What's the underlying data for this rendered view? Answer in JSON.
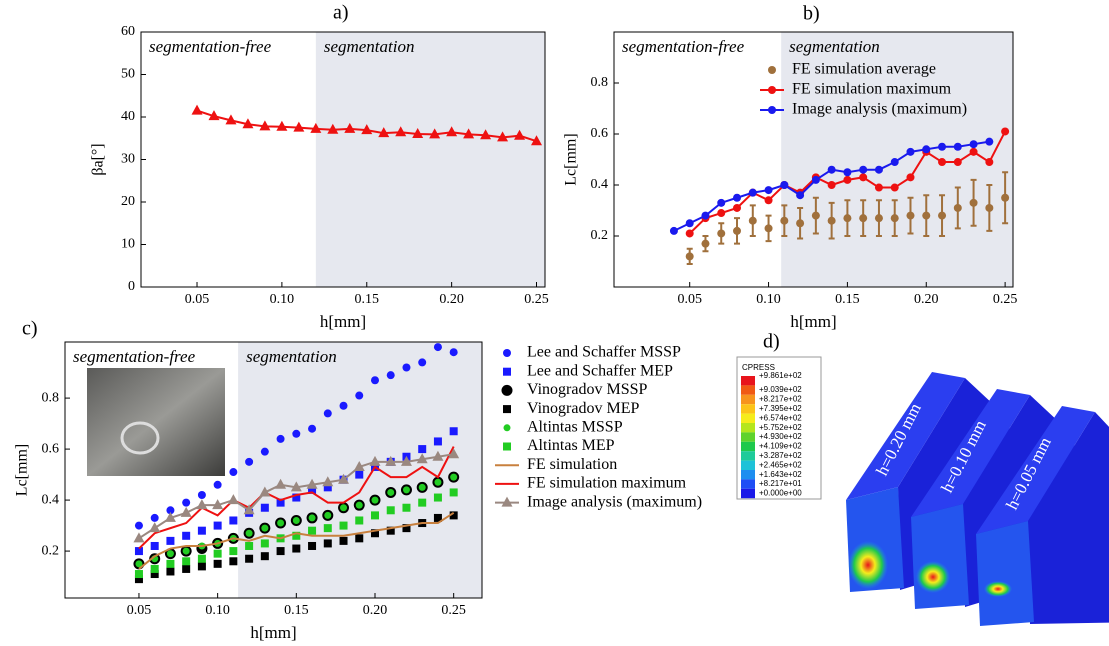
{
  "chart_data": [
    {
      "type": "line",
      "panel_label": "a)",
      "annotations": [
        "segmentation-free",
        "segmentation"
      ],
      "x_label": "h[mm]",
      "y_label": "βa[°]",
      "xlim": [
        0.017,
        0.255
      ],
      "ylim": [
        0,
        60
      ],
      "xticks": [
        0.05,
        {
          "value": 0.1,
          "label": "0.10"
        },
        0.15,
        {
          "value": 0.2,
          "label": "0.20"
        },
        0.25
      ],
      "yticks": [
        0,
        10,
        20,
        30,
        40,
        50,
        60
      ],
      "shaded_from": 0.12,
      "shade_color": "#e6e8ef",
      "x": [
        0.05,
        0.06,
        0.07,
        0.08,
        0.09,
        0.1,
        0.11,
        0.12,
        0.13,
        0.14,
        0.15,
        0.16,
        0.17,
        0.18,
        0.19,
        0.2,
        0.21,
        0.22,
        0.23,
        0.24,
        0.25
      ],
      "series": [
        {
          "color": "#ee1111",
          "marker": "triangle",
          "line": true,
          "marker_size": 5,
          "values": [
            41.5,
            40.2,
            39.2,
            38.3,
            37.8,
            37.7,
            37.5,
            37.2,
            37.0,
            37.2,
            36.9,
            36.2,
            36.4,
            36.0,
            35.9,
            36.4,
            35.9,
            35.7,
            35.2,
            35.6,
            34.3
          ]
        }
      ]
    },
    {
      "type": "line",
      "panel_label": "b)",
      "annotations": [
        "segmentation-free",
        "segmentation"
      ],
      "x_label": "h[mm]",
      "y_label": "Lc[mm]",
      "xlim": [
        0.002,
        0.255
      ],
      "ylim": [
        0,
        1.0
      ],
      "xticks": [
        0.05,
        {
          "value": 0.1,
          "label": "0.10"
        },
        0.15,
        {
          "value": 0.2,
          "label": "0.20"
        },
        0.25
      ],
      "yticks": [
        0.2,
        0.4,
        0.6,
        0.8
      ],
      "shaded_from": 0.108,
      "shade_color": "#e6e8ef",
      "legend": "upper right",
      "series": [
        {
          "name": "FE simulation average",
          "color": "#a0703c",
          "marker": "circle",
          "line": false,
          "marker_size": 4,
          "x": [
            0.05,
            0.06,
            0.07,
            0.08,
            0.09,
            0.1,
            0.11,
            0.12,
            0.13,
            0.14,
            0.15,
            0.16,
            0.17,
            0.18,
            0.19,
            0.2,
            0.21,
            0.22,
            0.23,
            0.24,
            0.25
          ],
          "values": [
            0.12,
            0.17,
            0.21,
            0.22,
            0.26,
            0.23,
            0.26,
            0.25,
            0.28,
            0.26,
            0.27,
            0.27,
            0.27,
            0.27,
            0.28,
            0.28,
            0.28,
            0.31,
            0.33,
            0.31,
            0.35
          ],
          "errors": [
            0.03,
            0.03,
            0.04,
            0.05,
            0.06,
            0.05,
            0.06,
            0.06,
            0.07,
            0.07,
            0.07,
            0.07,
            0.07,
            0.07,
            0.07,
            0.08,
            0.08,
            0.08,
            0.09,
            0.09,
            0.1
          ]
        },
        {
          "name": "FE simulation maximum",
          "color": "#ee1111",
          "marker": "circle",
          "line": true,
          "marker_size": 4,
          "x": [
            0.05,
            0.06,
            0.07,
            0.08,
            0.09,
            0.1,
            0.11,
            0.12,
            0.13,
            0.14,
            0.15,
            0.16,
            0.17,
            0.18,
            0.19,
            0.2,
            0.21,
            0.22,
            0.23,
            0.24,
            0.25
          ],
          "values": [
            0.21,
            0.27,
            0.29,
            0.31,
            0.37,
            0.34,
            0.4,
            0.37,
            0.43,
            0.4,
            0.42,
            0.43,
            0.39,
            0.39,
            0.43,
            0.53,
            0.49,
            0.49,
            0.53,
            0.49,
            0.61
          ]
        },
        {
          "name": "Image analysis (maximum)",
          "color": "#1a1aee",
          "marker": "circle",
          "line": true,
          "marker_size": 4,
          "x": [
            0.04,
            0.05,
            0.06,
            0.07,
            0.08,
            0.09,
            0.1,
            0.11,
            0.12,
            0.13,
            0.14,
            0.15,
            0.16,
            0.17,
            0.18,
            0.19,
            0.2,
            0.21,
            0.22,
            0.23,
            0.24
          ],
          "values": [
            0.22,
            0.25,
            0.28,
            0.33,
            0.35,
            0.37,
            0.38,
            0.4,
            0.36,
            0.42,
            0.46,
            0.45,
            0.46,
            0.46,
            0.49,
            0.53,
            0.54,
            0.55,
            0.55,
            0.56,
            0.57
          ]
        }
      ]
    },
    {
      "type": "line",
      "panel_label": "c)",
      "annotations": [
        "segmentation-free",
        "segmentation"
      ],
      "x_label": "h[mm]",
      "y_label": "Lc[mm]",
      "xlim": [
        0.003,
        0.268
      ],
      "ylim": [
        0.016,
        1.02
      ],
      "xticks": [
        0.05,
        {
          "value": 0.1,
          "label": "0.10"
        },
        0.15,
        {
          "value": 0.2,
          "label": "0.20"
        },
        0.25
      ],
      "yticks": [
        0.2,
        0.4,
        0.6,
        0.8
      ],
      "shaded_from": 0.113,
      "shade_color": "#e6e8ef",
      "legend": "outside right",
      "x": [
        0.05,
        0.06,
        0.07,
        0.08,
        0.09,
        0.1,
        0.11,
        0.12,
        0.13,
        0.14,
        0.15,
        0.16,
        0.17,
        0.18,
        0.19,
        0.2,
        0.21,
        0.22,
        0.23,
        0.24,
        0.25
      ],
      "series": [
        {
          "name": "Lee and Schaffer MSSP",
          "color": "#1a1aff",
          "marker": "circle",
          "line": false,
          "marker_size": 4,
          "values": [
            0.3,
            0.33,
            0.36,
            0.39,
            0.42,
            0.46,
            0.51,
            0.55,
            0.59,
            0.64,
            0.66,
            0.68,
            0.74,
            0.77,
            0.81,
            0.87,
            0.89,
            0.92,
            0.94,
            1.0,
            0.98
          ]
        },
        {
          "name": "Lee and Schaffer MEP",
          "color": "#1a1aff",
          "marker": "square",
          "line": false,
          "marker_size": 4,
          "values": [
            0.2,
            0.22,
            0.24,
            0.26,
            0.28,
            0.3,
            0.32,
            0.35,
            0.37,
            0.39,
            0.41,
            0.44,
            0.45,
            0.48,
            0.5,
            0.53,
            0.55,
            0.57,
            0.6,
            0.63,
            0.67
          ]
        },
        {
          "name": "Vinogradov MSSP",
          "color": "#000000",
          "marker": "circle",
          "line": false,
          "marker_size": 5.5,
          "values": [
            0.15,
            0.17,
            0.19,
            0.2,
            0.21,
            0.23,
            0.25,
            0.27,
            0.29,
            0.31,
            0.32,
            0.33,
            0.34,
            0.37,
            0.38,
            0.4,
            0.43,
            0.44,
            0.45,
            0.47,
            0.49
          ]
        },
        {
          "name": "Vinogradov MEP",
          "color": "#000000",
          "marker": "square",
          "line": false,
          "marker_size": 4,
          "values": [
            0.09,
            0.11,
            0.12,
            0.13,
            0.14,
            0.15,
            0.16,
            0.17,
            0.18,
            0.2,
            0.21,
            0.22,
            0.23,
            0.24,
            0.25,
            0.27,
            0.28,
            0.29,
            0.31,
            0.33,
            0.34
          ]
        },
        {
          "name": "Altintas MSSP",
          "color": "#22cc22",
          "marker": "circle",
          "line": false,
          "marker_size": 3.5,
          "values": [
            0.15,
            0.17,
            0.19,
            0.2,
            0.22,
            0.23,
            0.25,
            0.27,
            0.29,
            0.31,
            0.32,
            0.33,
            0.34,
            0.37,
            0.38,
            0.4,
            0.43,
            0.44,
            0.45,
            0.47,
            0.49
          ]
        },
        {
          "name": "Altintas MEP",
          "color": "#22cc22",
          "marker": "square",
          "line": false,
          "marker_size": 4,
          "values": [
            0.11,
            0.13,
            0.15,
            0.16,
            0.17,
            0.19,
            0.2,
            0.22,
            0.23,
            0.25,
            0.26,
            0.28,
            0.29,
            0.3,
            0.32,
            0.34,
            0.36,
            0.37,
            0.39,
            0.41,
            0.43
          ]
        },
        {
          "name": "FE simulation",
          "color": "#c8803e",
          "marker": "none",
          "line": true,
          "marker_size": 0,
          "values": [
            0.13,
            0.18,
            0.21,
            0.22,
            0.22,
            0.23,
            0.25,
            0.24,
            0.26,
            0.25,
            0.27,
            0.26,
            0.26,
            0.26,
            0.27,
            0.28,
            0.29,
            0.3,
            0.31,
            0.31,
            0.35
          ]
        },
        {
          "name": "FE simulation maximum",
          "color": "#ee1111",
          "marker": "none",
          "line": true,
          "marker_size": 0,
          "values": [
            0.21,
            0.27,
            0.29,
            0.31,
            0.37,
            0.34,
            0.4,
            0.37,
            0.43,
            0.4,
            0.42,
            0.43,
            0.39,
            0.39,
            0.43,
            0.53,
            0.49,
            0.49,
            0.53,
            0.49,
            0.61
          ]
        },
        {
          "name": "Image analysis (maximum)",
          "color": "#9a8880",
          "marker": "triangle",
          "line": true,
          "marker_size": 5,
          "values": [
            0.25,
            0.29,
            0.33,
            0.35,
            0.38,
            0.38,
            0.4,
            0.36,
            0.43,
            0.46,
            0.45,
            0.46,
            0.47,
            0.48,
            0.53,
            0.55,
            0.55,
            0.55,
            0.56,
            0.57,
            0.58
          ]
        }
      ]
    }
  ],
  "figure_d": {
    "label": "d)",
    "legend_title": "CPRESS",
    "legend_labels": [
      "+9.861e+02",
      "+9.039e+02",
      "+8.217e+02",
      "+7.395e+02",
      "+6.574e+02",
      "+5.752e+02",
      "+4.930e+02",
      "+4.109e+02",
      "+3.287e+02",
      "+2.465e+02",
      "+1.643e+02",
      "+8.217e+01",
      "+0.000e+00"
    ],
    "legend_colors": [
      "#e8141c",
      "#f05a14",
      "#f7941d",
      "#fcc419",
      "#f6ec1c",
      "#b5e61d",
      "#5fd32c",
      "#1ec94c",
      "#1ecb9a",
      "#1ec2d8",
      "#1e8ef0",
      "#1e4ef5",
      "#1a18e8"
    ],
    "shape_labels": [
      "h=0.20 mm",
      "h=0.10 mm",
      "h=0.05 mm"
    ]
  }
}
